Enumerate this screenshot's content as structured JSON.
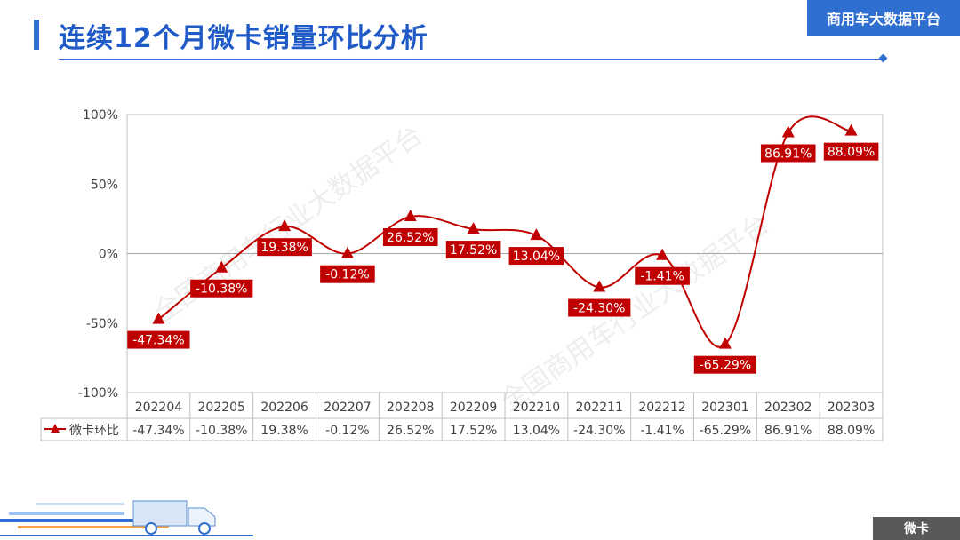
{
  "header": {
    "title": "连续12个月微卡销量环比分析",
    "brand": "商用车大数据平台"
  },
  "footer": {
    "tag": "微卡"
  },
  "watermark": "全国商用车行业大数据平台",
  "colors": {
    "accent": "#2f6fd0",
    "series": "#c00000",
    "grid": "#bfbfbf"
  },
  "chart_data": {
    "type": "line",
    "title": "",
    "categories": [
      "202204",
      "202205",
      "202206",
      "202207",
      "202208",
      "202209",
      "202210",
      "202211",
      "202212",
      "202301",
      "202302",
      "202303"
    ],
    "series": [
      {
        "name": "微卡环比",
        "values": [
          -47.34,
          -10.38,
          19.38,
          -0.12,
          26.52,
          17.52,
          13.04,
          -24.3,
          -1.41,
          -65.29,
          86.91,
          88.09
        ],
        "labels": [
          "-47.34%",
          "-10.38%",
          "19.38%",
          "-0.12%",
          "26.52%",
          "17.52%",
          "13.04%",
          "-24.30%",
          "-1.41%",
          "-65.29%",
          "86.91%",
          "88.09%"
        ],
        "marker": "triangle",
        "smooth": true
      }
    ],
    "ylim": [
      -100,
      100
    ],
    "yticks": [
      100,
      50,
      0,
      -50,
      -100
    ],
    "ytick_labels": [
      "100%",
      "50%",
      "0%",
      "-50%",
      "-100%"
    ],
    "grid": false,
    "zero_line": true,
    "data_table": true
  }
}
